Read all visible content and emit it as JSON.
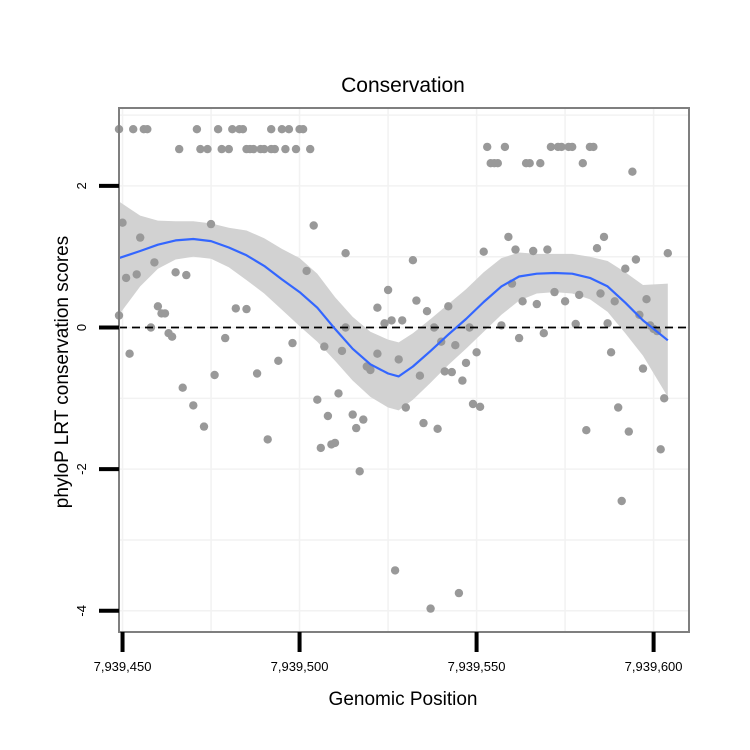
{
  "chart_data": {
    "type": "scatter",
    "title": "Conservation",
    "xlabel": "Genomic Position",
    "ylabel": "phyloP LRT conservation scores",
    "xlim": [
      7939449,
      7939610
    ],
    "ylim": [
      -4.3,
      3.1
    ],
    "x_ticks": [
      7939450,
      7939500,
      7939550,
      7939600
    ],
    "x_tick_labels": [
      "7,939,450",
      "7,939,500",
      "7,939,550",
      "7,939,600"
    ],
    "y_ticks": [
      2,
      0,
      -2,
      -4
    ],
    "y_tick_labels": [
      "2",
      "0",
      "-2",
      "-4"
    ],
    "grid": true,
    "reference_line": {
      "y": 0,
      "style": "dashed"
    },
    "colors": {
      "points": "#999999",
      "smooth": "#3366FF",
      "ribbon": "#d2d2d2",
      "panel_border": "#7f7f7f",
      "grid": "#f2f2f2",
      "reference": "#000000"
    },
    "series": [
      {
        "name": "scores",
        "points": [
          [
            7939449,
            2.8
          ],
          [
            7939449,
            0.17
          ],
          [
            7939450,
            1.48
          ],
          [
            7939451,
            0.7
          ],
          [
            7939452,
            -0.37
          ],
          [
            7939453,
            2.8
          ],
          [
            7939454,
            0.75
          ],
          [
            7939455,
            1.27
          ],
          [
            7939456,
            2.8
          ],
          [
            7939457,
            2.8
          ],
          [
            7939458,
            0.0
          ],
          [
            7939459,
            0.92
          ],
          [
            7939460,
            0.3
          ],
          [
            7939461,
            0.2
          ],
          [
            7939462,
            0.2
          ],
          [
            7939463,
            -0.08
          ],
          [
            7939464,
            -0.13
          ],
          [
            7939465,
            0.78
          ],
          [
            7939466,
            2.52
          ],
          [
            7939467,
            -0.85
          ],
          [
            7939468,
            0.74
          ],
          [
            7939470,
            -1.1
          ],
          [
            7939471,
            2.8
          ],
          [
            7939472,
            2.52
          ],
          [
            7939473,
            -1.4
          ],
          [
            7939474,
            2.52
          ],
          [
            7939475,
            1.46
          ],
          [
            7939476,
            -0.67
          ],
          [
            7939477,
            2.8
          ],
          [
            7939478,
            2.52
          ],
          [
            7939479,
            -0.15
          ],
          [
            7939480,
            2.52
          ],
          [
            7939481,
            2.8
          ],
          [
            7939482,
            0.27
          ],
          [
            7939483,
            2.8
          ],
          [
            7939484,
            2.8
          ],
          [
            7939485,
            0.26
          ],
          [
            7939485,
            2.52
          ],
          [
            7939486,
            2.52
          ],
          [
            7939487,
            2.52
          ],
          [
            7939488,
            -0.65
          ],
          [
            7939489,
            2.52
          ],
          [
            7939490,
            2.52
          ],
          [
            7939491,
            -1.58
          ],
          [
            7939492,
            2.8
          ],
          [
            7939492,
            2.52
          ],
          [
            7939493,
            2.52
          ],
          [
            7939494,
            -0.47
          ],
          [
            7939495,
            2.8
          ],
          [
            7939496,
            2.52
          ],
          [
            7939497,
            2.8
          ],
          [
            7939498,
            -0.22
          ],
          [
            7939499,
            2.52
          ],
          [
            7939500,
            2.8
          ],
          [
            7939501,
            2.8
          ],
          [
            7939502,
            0.8
          ],
          [
            7939503,
            2.52
          ],
          [
            7939504,
            1.44
          ],
          [
            7939505,
            -1.02
          ],
          [
            7939506,
            -1.7
          ],
          [
            7939507,
            -0.27
          ],
          [
            7939508,
            -1.25
          ],
          [
            7939509,
            -1.65
          ],
          [
            7939510,
            -1.63
          ],
          [
            7939511,
            -0.93
          ],
          [
            7939512,
            -0.33
          ],
          [
            7939513,
            1.05
          ],
          [
            7939513,
            0.0
          ],
          [
            7939515,
            -1.23
          ],
          [
            7939516,
            -1.42
          ],
          [
            7939517,
            -2.03
          ],
          [
            7939518,
            -1.3
          ],
          [
            7939519,
            -0.55
          ],
          [
            7939520,
            -0.6
          ],
          [
            7939522,
            0.28
          ],
          [
            7939522,
            -0.37
          ],
          [
            7939524,
            0.06
          ],
          [
            7939525,
            0.53
          ],
          [
            7939526,
            0.1
          ],
          [
            7939527,
            -3.43
          ],
          [
            7939528,
            -0.45
          ],
          [
            7939529,
            0.1
          ],
          [
            7939530,
            -1.13
          ],
          [
            7939532,
            0.95
          ],
          [
            7939533,
            0.38
          ],
          [
            7939534,
            -0.68
          ],
          [
            7939535,
            -1.35
          ],
          [
            7939536,
            0.23
          ],
          [
            7939537,
            -3.97
          ],
          [
            7939538,
            0.0
          ],
          [
            7939539,
            -1.43
          ],
          [
            7939540,
            -0.2
          ],
          [
            7939541,
            -0.62
          ],
          [
            7939542,
            0.3
          ],
          [
            7939543,
            -0.63
          ],
          [
            7939544,
            -0.25
          ],
          [
            7939545,
            -3.75
          ],
          [
            7939546,
            -0.75
          ],
          [
            7939547,
            -0.5
          ],
          [
            7939548,
            0.0
          ],
          [
            7939549,
            -1.08
          ],
          [
            7939550,
            -0.35
          ],
          [
            7939551,
            -1.12
          ],
          [
            7939552,
            1.07
          ],
          [
            7939553,
            2.55
          ],
          [
            7939554,
            2.32
          ],
          [
            7939555,
            2.32
          ],
          [
            7939556,
            2.32
          ],
          [
            7939557,
            0.03
          ],
          [
            7939558,
            2.55
          ],
          [
            7939559,
            1.28
          ],
          [
            7939560,
            0.62
          ],
          [
            7939561,
            1.1
          ],
          [
            7939562,
            -0.15
          ],
          [
            7939563,
            0.37
          ],
          [
            7939564,
            2.32
          ],
          [
            7939565,
            2.32
          ],
          [
            7939566,
            1.08
          ],
          [
            7939567,
            0.33
          ],
          [
            7939568,
            2.32
          ],
          [
            7939569,
            -0.08
          ],
          [
            7939570,
            1.1
          ],
          [
            7939571,
            2.55
          ],
          [
            7939572,
            0.5
          ],
          [
            7939573,
            2.55
          ],
          [
            7939574,
            2.55
          ],
          [
            7939575,
            0.37
          ],
          [
            7939576,
            2.55
          ],
          [
            7939577,
            2.55
          ],
          [
            7939578,
            0.05
          ],
          [
            7939579,
            0.46
          ],
          [
            7939580,
            2.32
          ],
          [
            7939581,
            -1.45
          ],
          [
            7939582,
            2.55
          ],
          [
            7939583,
            2.55
          ],
          [
            7939584,
            1.12
          ],
          [
            7939585,
            0.48
          ],
          [
            7939586,
            1.28
          ],
          [
            7939587,
            0.06
          ],
          [
            7939588,
            -0.35
          ],
          [
            7939589,
            0.37
          ],
          [
            7939590,
            -1.13
          ],
          [
            7939591,
            -2.45
          ],
          [
            7939592,
            0.83
          ],
          [
            7939593,
            -1.47
          ],
          [
            7939594,
            2.2
          ],
          [
            7939595,
            0.96
          ],
          [
            7939596,
            0.18
          ],
          [
            7939597,
            -0.58
          ],
          [
            7939598,
            0.4
          ],
          [
            7939599,
            0.03
          ],
          [
            7939600,
            -0.02
          ],
          [
            7939601,
            -0.05
          ],
          [
            7939602,
            -1.72
          ],
          [
            7939603,
            -1.0
          ],
          [
            7939604,
            1.05
          ]
        ]
      }
    ],
    "smooth_line": {
      "x": [
        7939449,
        7939455,
        7939460,
        7939465,
        7939470,
        7939475,
        7939480,
        7939485,
        7939490,
        7939495,
        7939500,
        7939505,
        7939510,
        7939515,
        7939520,
        7939525,
        7939528,
        7939532,
        7939537,
        7939542,
        7939547,
        7939552,
        7939557,
        7939562,
        7939567,
        7939572,
        7939577,
        7939582,
        7939587,
        7939592,
        7939597,
        7939604
      ],
      "y": [
        0.98,
        1.08,
        1.17,
        1.23,
        1.25,
        1.22,
        1.13,
        1.02,
        0.87,
        0.68,
        0.5,
        0.28,
        -0.02,
        -0.3,
        -0.52,
        -0.65,
        -0.69,
        -0.55,
        -0.33,
        -0.1,
        0.12,
        0.36,
        0.58,
        0.72,
        0.76,
        0.77,
        0.76,
        0.7,
        0.58,
        0.35,
        0.1,
        -0.18
      ]
    },
    "confidence_band": {
      "x": [
        7939449,
        7939455,
        7939460,
        7939465,
        7939470,
        7939475,
        7939480,
        7939485,
        7939490,
        7939495,
        7939500,
        7939505,
        7939510,
        7939515,
        7939520,
        7939525,
        7939528,
        7939532,
        7939537,
        7939542,
        7939547,
        7939552,
        7939557,
        7939562,
        7939567,
        7939572,
        7939577,
        7939582,
        7939587,
        7939592,
        7939597,
        7939604
      ],
      "lower": [
        0.18,
        0.58,
        0.83,
        0.96,
        1.0,
        0.97,
        0.85,
        0.67,
        0.48,
        0.25,
        0.02,
        -0.2,
        -0.47,
        -0.75,
        -0.98,
        -1.13,
        -1.17,
        -1.02,
        -0.78,
        -0.53,
        -0.3,
        -0.06,
        0.18,
        0.38,
        0.48,
        0.5,
        0.48,
        0.4,
        0.22,
        -0.08,
        -0.4,
        -0.98
      ],
      "upper": [
        1.78,
        1.58,
        1.51,
        1.5,
        1.5,
        1.47,
        1.41,
        1.37,
        1.26,
        1.11,
        0.98,
        0.76,
        0.43,
        0.15,
        -0.06,
        -0.17,
        -0.21,
        -0.08,
        0.12,
        0.33,
        0.54,
        0.78,
        0.98,
        1.06,
        1.04,
        1.04,
        1.04,
        1.0,
        0.94,
        0.78,
        0.6,
        0.62
      ]
    }
  }
}
